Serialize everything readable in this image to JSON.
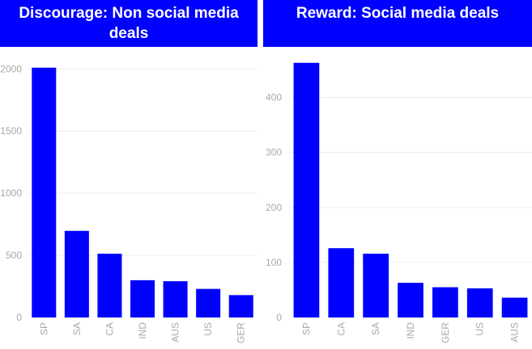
{
  "colors": {
    "banner_bg": "#0000ff",
    "banner_text": "#ffffff",
    "bar": "#0000ff",
    "tick_text": "#a8a8a8",
    "grid": "#ececec"
  },
  "chart_data": [
    {
      "type": "bar",
      "title": "Discourage: Non social media deals",
      "xlabel": "",
      "ylabel": "",
      "categories": [
        "SP",
        "SA",
        "CA",
        "IND",
        "AUS",
        "US",
        "GER"
      ],
      "values": [
        2010,
        697,
        513,
        300,
        292,
        230,
        180
      ],
      "yticks": [
        0,
        500,
        1000,
        1500,
        2000
      ],
      "ylim": [
        0,
        2080
      ],
      "grid": true
    },
    {
      "type": "bar",
      "title": "Reward: Social media deals",
      "xlabel": "",
      "ylabel": "",
      "categories": [
        "SP",
        "CA",
        "SA",
        "IND",
        "GER",
        "US",
        "AUS"
      ],
      "values": [
        463,
        126,
        116,
        63,
        55,
        53,
        36
      ],
      "yticks": [
        0,
        100,
        200,
        300,
        400
      ],
      "ylim": [
        0,
        470
      ],
      "grid": true
    }
  ]
}
